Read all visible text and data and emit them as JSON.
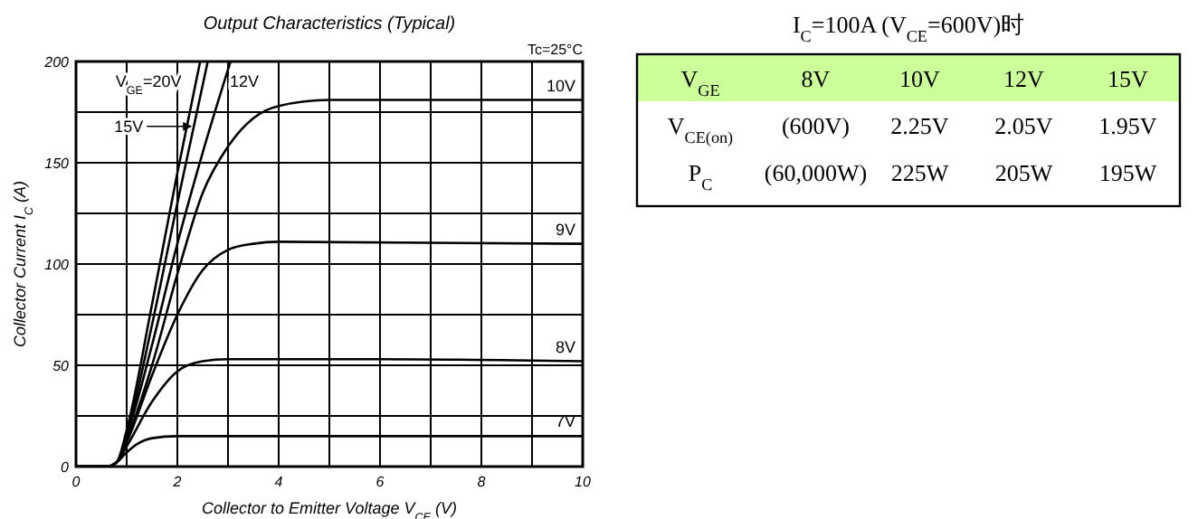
{
  "chart_data": [
    {
      "type": "line",
      "title": "Output Characteristics (Typical)",
      "xlabel": "Collector to Emitter Voltage V$_{CE}$ (V)",
      "ylabel": "Collector Current I$_{C}$ (A)",
      "annotations": [
        "Tc=25°C"
      ],
      "xlim": [
        0,
        10
      ],
      "ylim": [
        0,
        200
      ],
      "xticks": [
        0,
        2,
        4,
        6,
        8,
        10
      ],
      "yticks": [
        0,
        50,
        100,
        150,
        200
      ],
      "grid": true,
      "line_style": "solid",
      "series": [
        {
          "name": "7V",
          "color": "#000000",
          "x": [
            0,
            0.6,
            0.8,
            1,
            1.2,
            1.5,
            2,
            10
          ],
          "values": [
            0,
            0,
            2,
            7,
            11,
            14,
            15,
            15
          ]
        },
        {
          "name": "8V",
          "color": "#000000",
          "x": [
            0,
            0.6,
            0.8,
            1,
            1.5,
            2,
            2.5,
            3,
            6,
            10
          ],
          "values": [
            0,
            0,
            2,
            10,
            32,
            47,
            52,
            53,
            53,
            52
          ]
        },
        {
          "name": "9V",
          "color": "#000000",
          "x": [
            0,
            0.6,
            0.8,
            1,
            1.5,
            2,
            2.5,
            3,
            3.5,
            4,
            10
          ],
          "values": [
            0,
            0,
            2,
            12,
            45,
            75,
            97,
            107,
            110,
            111,
            110
          ]
        },
        {
          "name": "10V",
          "color": "#000000",
          "x": [
            0,
            0.6,
            0.8,
            1,
            1.5,
            2,
            2.5,
            3,
            3.5,
            4,
            5,
            10
          ],
          "values": [
            0,
            0,
            2,
            13,
            50,
            95,
            135,
            158,
            172,
            178,
            181,
            181
          ]
        },
        {
          "name": "V$_{GE}$=20V",
          "color": "#000000",
          "x": [
            0,
            0.6,
            0.8,
            1,
            1.5,
            2,
            2.45
          ],
          "values": [
            0,
            0,
            2,
            18,
            80,
            145,
            200
          ]
        },
        {
          "name": "15V",
          "color": "#000000",
          "x": [
            0,
            0.6,
            0.8,
            1,
            1.5,
            2,
            2.6
          ],
          "values": [
            0,
            0,
            2,
            16,
            70,
            130,
            200
          ]
        },
        {
          "name": "12V",
          "color": "#000000",
          "x": [
            0,
            0.6,
            0.8,
            1,
            1.5,
            2,
            2.5,
            3.05
          ],
          "values": [
            0,
            0,
            2,
            15,
            60,
            110,
            155,
            200
          ]
        }
      ]
    },
    {
      "type": "other",
      "title": "I$_{C}$=100A (V$_{CE}$=600V)时",
      "cell_labels": [
        [
          "V$_{GE}$",
          "8V",
          "10V",
          "12V",
          "15V"
        ],
        [
          "V$_{CE(on)}$",
          "(600V)",
          "2.25V",
          "2.05V",
          "1.95V"
        ],
        [
          "P$_{C}$",
          "(60,000W)",
          "225W",
          "205W",
          "195W"
        ]
      ]
    }
  ]
}
